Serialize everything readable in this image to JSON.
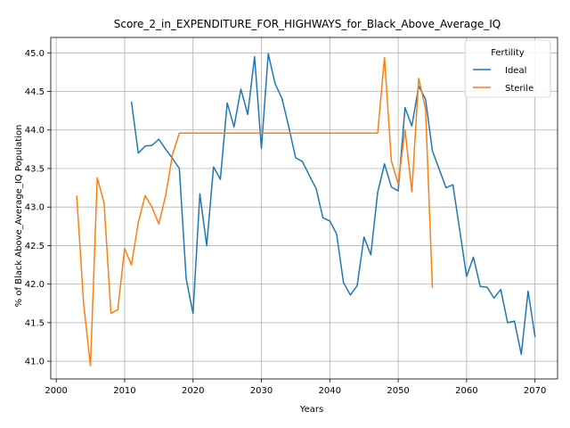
{
  "chart_data": {
    "type": "line",
    "title": "Score_2_in_EXPENDITURE_FOR_HIGHWAYS_for_Black_Above_Average_IQ",
    "xlabel": "Years",
    "ylabel": "% of Black Above_Average_IQ Population",
    "xlim": [
      1999.2,
      2073.3
    ],
    "ylim": [
      40.77,
      45.2
    ],
    "xticks": [
      2000,
      2010,
      2020,
      2030,
      2040,
      2050,
      2060,
      2070
    ],
    "yticks": [
      41.0,
      41.5,
      42.0,
      42.5,
      43.0,
      43.5,
      44.0,
      44.5,
      45.0
    ],
    "grid": true,
    "legend": {
      "title": "Fertility",
      "position": "top-right"
    },
    "series": [
      {
        "name": "Ideal",
        "color": "#1f77b4",
        "x": [
          2011,
          2012,
          2013,
          2014,
          2015,
          2016,
          2017,
          2018,
          2019,
          2020,
          2021,
          2022,
          2023,
          2024,
          2025,
          2026,
          2027,
          2028,
          2029,
          2030,
          2031,
          2032,
          2033,
          2034,
          2035,
          2036,
          2037,
          2038,
          2039,
          2040,
          2041,
          2042,
          2043,
          2044,
          2045,
          2046,
          2047,
          2048,
          2049,
          2050,
          2051,
          2052,
          2053,
          2054,
          2055,
          2056,
          2057,
          2058,
          2059,
          2060,
          2061,
          2062,
          2063,
          2064,
          2065,
          2066,
          2067,
          2068,
          2069,
          2070
        ],
        "y": [
          44.36,
          43.7,
          43.79,
          43.8,
          43.88,
          43.75,
          43.63,
          43.5,
          42.07,
          41.62,
          43.17,
          42.5,
          43.52,
          43.36,
          44.35,
          44.04,
          44.53,
          44.2,
          44.95,
          43.76,
          44.99,
          44.6,
          44.41,
          44.04,
          43.64,
          43.59,
          43.41,
          43.24,
          42.86,
          42.82,
          42.65,
          42.02,
          41.86,
          41.98,
          42.61,
          42.38,
          43.19,
          43.56,
          43.26,
          43.21,
          44.29,
          44.05,
          44.57,
          44.4,
          43.73,
          43.49,
          43.25,
          43.29,
          42.7,
          42.1,
          42.35,
          41.97,
          41.96,
          41.82,
          41.93,
          41.5,
          41.52,
          41.09,
          41.91,
          41.32
        ]
      },
      {
        "name": "Sterile",
        "color": "#ff7f0e",
        "x": [
          2003,
          2004,
          2005,
          2006,
          2007,
          2008,
          2009,
          2010,
          2011,
          2012,
          2013,
          2014,
          2015,
          2016,
          2017,
          2018,
          2019,
          2020,
          2021,
          2022,
          2023,
          2024,
          2025,
          2026,
          2027,
          2028,
          2029,
          2030,
          2031,
          2032,
          2033,
          2034,
          2035,
          2036,
          2037,
          2038,
          2039,
          2040,
          2041,
          2042,
          2043,
          2044,
          2045,
          2046,
          2047,
          2048,
          2049,
          2050,
          2051,
          2052,
          2053,
          2054,
          2055
        ],
        "y": [
          43.14,
          41.75,
          40.94,
          43.38,
          43.05,
          41.62,
          41.67,
          42.46,
          42.25,
          42.8,
          43.15,
          43.0,
          42.78,
          43.15,
          43.68,
          43.96,
          43.96,
          43.96,
          43.96,
          43.96,
          43.96,
          43.96,
          43.96,
          43.96,
          43.96,
          43.96,
          43.96,
          43.96,
          43.96,
          43.96,
          43.96,
          43.96,
          43.96,
          43.96,
          43.96,
          43.96,
          43.96,
          43.96,
          43.96,
          43.96,
          43.96,
          43.96,
          43.96,
          43.96,
          43.96,
          44.94,
          43.6,
          43.3,
          44.0,
          43.2,
          44.67,
          44.27,
          41.96
        ]
      }
    ]
  }
}
